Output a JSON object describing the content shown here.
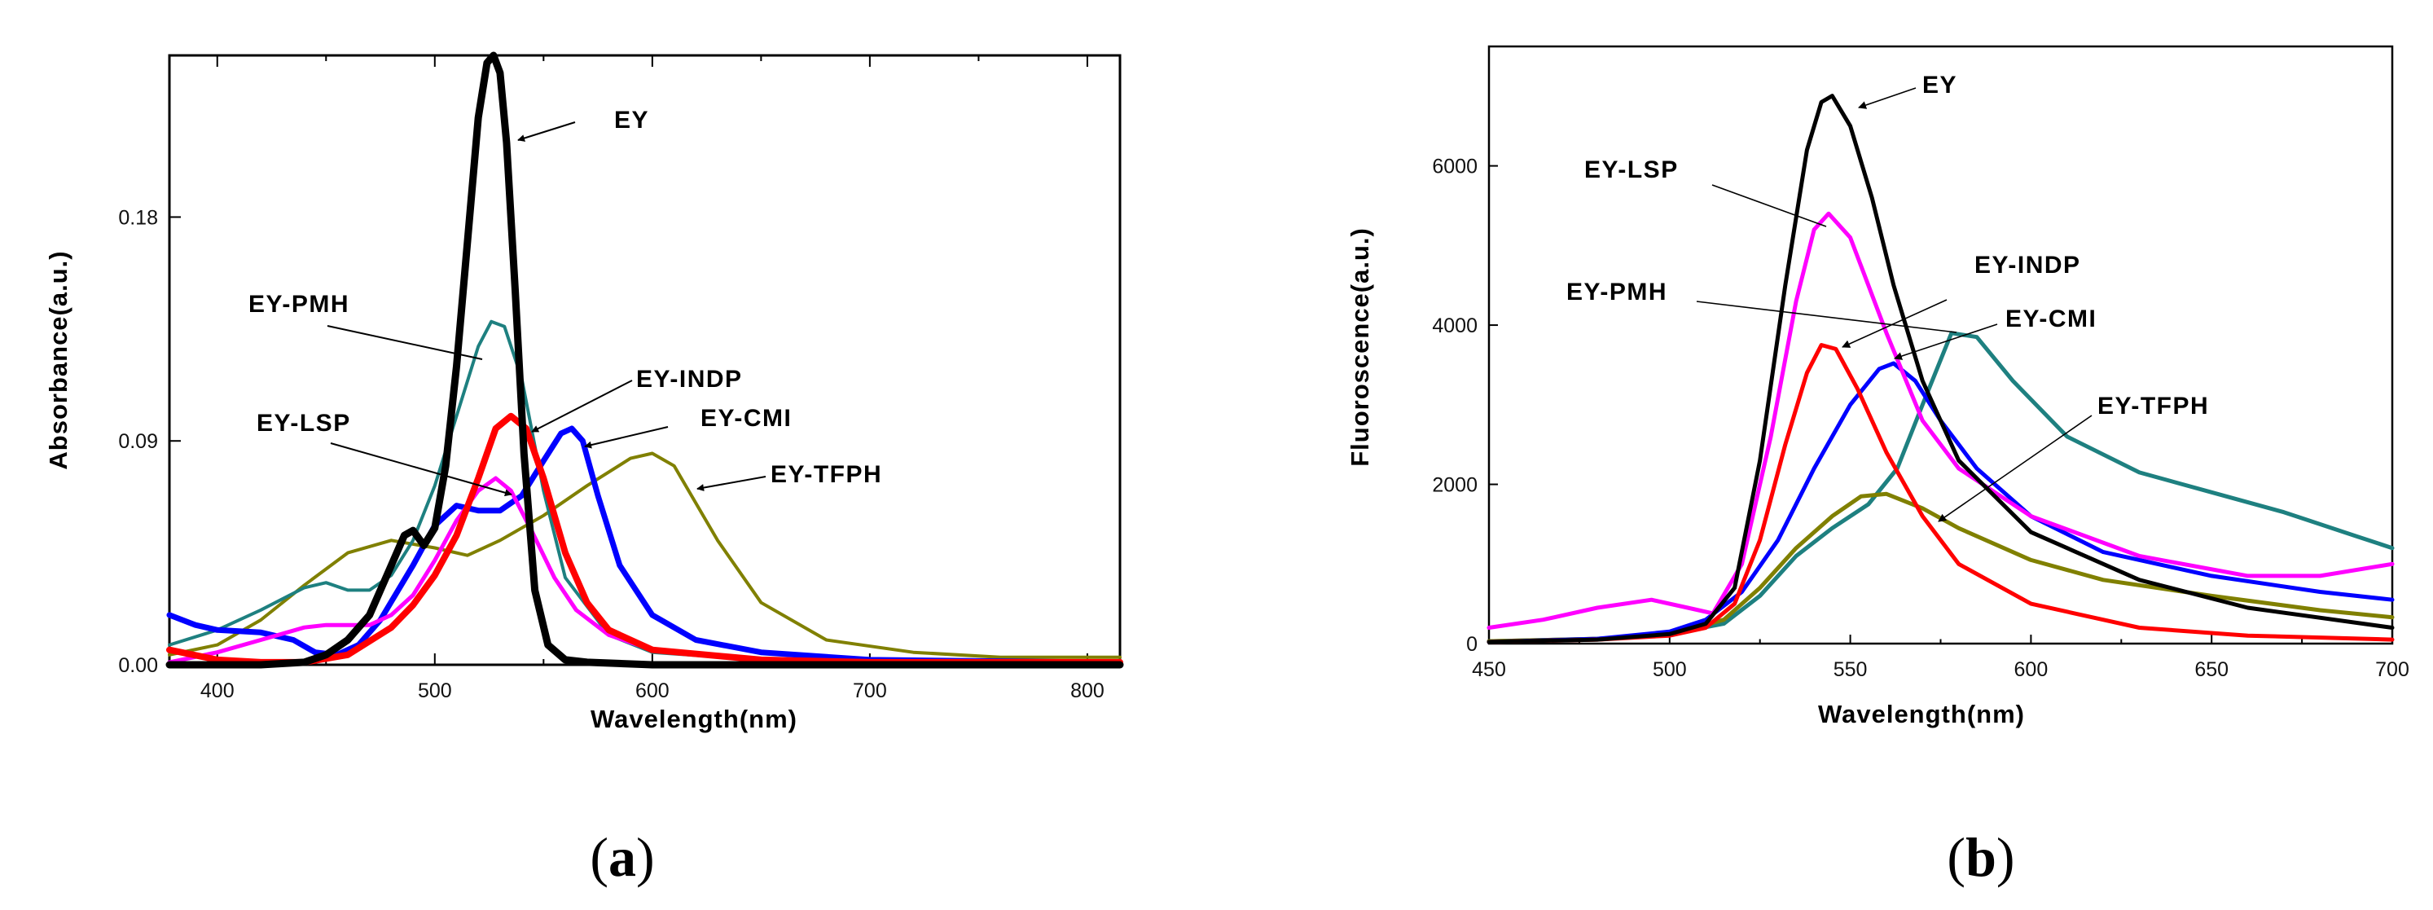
{
  "colors": {
    "EY": "#000000",
    "EY-PMH": "#1e8080",
    "EY-INDP": "#ff0000",
    "EY-CMI": "#0000ff",
    "EY-LSP": "#ff00ff",
    "EY-TFPH": "#808000"
  },
  "panel_labels": {
    "a": "a",
    "b": "b"
  },
  "chart_data": [
    {
      "id": "a",
      "type": "line",
      "title": "",
      "xlabel": "Wavelength(nm)",
      "ylabel": "Absorbance(a.u.)",
      "xlim": [
        378,
        815
      ],
      "ylim": [
        0,
        0.245
      ],
      "xticks": [
        400,
        500,
        600,
        700,
        800
      ],
      "xtick_labels": [
        "400",
        "500",
        "600",
        "700",
        "800"
      ],
      "yticks": [
        0,
        0.09,
        0.18
      ],
      "ytick_labels": [
        "0.00",
        "0.09",
        "0.18"
      ],
      "series": [
        {
          "name": "EY-TFPH",
          "x": [
            378,
            400,
            420,
            440,
            460,
            480,
            500,
            515,
            530,
            550,
            570,
            590,
            600,
            610,
            630,
            650,
            680,
            720,
            760,
            800,
            815
          ],
          "y": [
            0.004,
            0.008,
            0.018,
            0.032,
            0.045,
            0.05,
            0.047,
            0.044,
            0.05,
            0.06,
            0.072,
            0.083,
            0.085,
            0.08,
            0.05,
            0.025,
            0.01,
            0.005,
            0.003,
            0.003,
            0.003
          ]
        },
        {
          "name": "EY-PMH",
          "x": [
            378,
            400,
            420,
            440,
            450,
            460,
            470,
            480,
            490,
            500,
            510,
            520,
            526,
            532,
            540,
            550,
            560,
            580,
            600,
            650,
            700,
            800,
            815
          ],
          "y": [
            0.008,
            0.014,
            0.022,
            0.031,
            0.033,
            0.03,
            0.03,
            0.036,
            0.05,
            0.072,
            0.1,
            0.128,
            0.138,
            0.136,
            0.115,
            0.07,
            0.035,
            0.012,
            0.005,
            0.002,
            0.001,
            0.001,
            0.001
          ]
        },
        {
          "name": "EY-CMI",
          "x": [
            378,
            390,
            400,
            420,
            435,
            445,
            455,
            465,
            475,
            490,
            500,
            510,
            520,
            530,
            540,
            550,
            558,
            563,
            568,
            575,
            585,
            600,
            620,
            650,
            700,
            800,
            815
          ],
          "y": [
            0.02,
            0.016,
            0.014,
            0.013,
            0.01,
            0.005,
            0.004,
            0.008,
            0.018,
            0.04,
            0.056,
            0.064,
            0.062,
            0.062,
            0.068,
            0.082,
            0.093,
            0.095,
            0.09,
            0.068,
            0.04,
            0.02,
            0.01,
            0.005,
            0.002,
            0.001,
            0.001
          ]
        },
        {
          "name": "EY-LSP",
          "x": [
            378,
            400,
            420,
            440,
            450,
            460,
            470,
            480,
            490,
            500,
            510,
            520,
            528,
            535,
            545,
            555,
            565,
            580,
            600,
            650,
            700,
            800,
            815
          ],
          "y": [
            0.001,
            0.005,
            0.01,
            0.015,
            0.016,
            0.016,
            0.016,
            0.02,
            0.028,
            0.042,
            0.058,
            0.07,
            0.075,
            0.07,
            0.053,
            0.035,
            0.022,
            0.012,
            0.006,
            0.002,
            0.001,
            0.001,
            0.001
          ]
        },
        {
          "name": "EY-INDP",
          "x": [
            378,
            400,
            420,
            440,
            460,
            480,
            490,
            500,
            510,
            520,
            528,
            535,
            542,
            550,
            560,
            570,
            580,
            600,
            650,
            700,
            800,
            815
          ],
          "y": [
            0.006,
            0.002,
            0.001,
            0.001,
            0.004,
            0.015,
            0.024,
            0.036,
            0.052,
            0.075,
            0.095,
            0.1,
            0.095,
            0.075,
            0.045,
            0.025,
            0.014,
            0.006,
            0.002,
            0.001,
            0.001,
            0.001
          ]
        },
        {
          "name": "EY",
          "x": [
            378,
            420,
            440,
            450,
            460,
            470,
            480,
            486,
            490,
            495,
            500,
            505,
            510,
            515,
            520,
            524,
            527,
            530,
            533,
            537,
            541,
            546,
            552,
            560,
            570,
            600,
            700,
            815
          ],
          "y": [
            0.0,
            0.0,
            0.001,
            0.004,
            0.01,
            0.02,
            0.04,
            0.052,
            0.054,
            0.048,
            0.055,
            0.08,
            0.12,
            0.17,
            0.22,
            0.242,
            0.245,
            0.238,
            0.21,
            0.15,
            0.085,
            0.03,
            0.008,
            0.002,
            0.001,
            0.0,
            0.0,
            0.0
          ]
        }
      ],
      "labels": [
        "EY",
        "EY-PMH",
        "EY-INDP",
        "EY-CMI",
        "EY-LSP",
        "EY-TFPH"
      ]
    },
    {
      "id": "b",
      "type": "line",
      "title": "",
      "xlabel": "Wavelength(nm)",
      "ylabel": "Fluoroscence(a.u.)",
      "xlim": [
        450,
        700
      ],
      "ylim": [
        0,
        7500
      ],
      "xticks": [
        450,
        500,
        550,
        600,
        650,
        700
      ],
      "xtick_labels": [
        "450",
        "500",
        "550",
        "600",
        "650",
        "700"
      ],
      "yticks": [
        0,
        2000,
        4000,
        6000
      ],
      "ytick_labels": [
        "0",
        "2000",
        "4000",
        "6000"
      ],
      "series": [
        {
          "name": "EY-PMH",
          "x": [
            450,
            480,
            500,
            515,
            525,
            535,
            545,
            555,
            563,
            570,
            578,
            585,
            595,
            610,
            630,
            650,
            670,
            690,
            700
          ],
          "y": [
            30,
            60,
            120,
            250,
            600,
            1100,
            1450,
            1750,
            2200,
            3000,
            3900,
            3850,
            3300,
            2600,
            2150,
            1900,
            1650,
            1350,
            1200
          ]
        },
        {
          "name": "EY-TFPH",
          "x": [
            450,
            480,
            500,
            515,
            525,
            535,
            545,
            553,
            560,
            570,
            580,
            600,
            620,
            650,
            680,
            700
          ],
          "y": [
            30,
            60,
            110,
            300,
            700,
            1200,
            1600,
            1850,
            1880,
            1700,
            1450,
            1050,
            800,
            600,
            420,
            330
          ]
        },
        {
          "name": "EY-CMI",
          "x": [
            450,
            480,
            500,
            510,
            520,
            530,
            540,
            550,
            558,
            562,
            568,
            575,
            585,
            600,
            620,
            650,
            680,
            700
          ],
          "y": [
            20,
            60,
            150,
            300,
            650,
            1300,
            2200,
            3000,
            3450,
            3520,
            3300,
            2800,
            2200,
            1600,
            1150,
            850,
            650,
            550
          ]
        },
        {
          "name": "EY-INDP",
          "x": [
            450,
            480,
            500,
            510,
            518,
            525,
            532,
            538,
            542,
            546,
            552,
            560,
            570,
            580,
            600,
            630,
            660,
            700
          ],
          "y": [
            20,
            50,
            100,
            200,
            500,
            1300,
            2500,
            3400,
            3750,
            3700,
            3200,
            2400,
            1600,
            1000,
            500,
            200,
            100,
            50
          ]
        },
        {
          "name": "EY-LSP",
          "x": [
            450,
            465,
            480,
            495,
            505,
            512,
            520,
            528,
            535,
            540,
            544,
            550,
            560,
            570,
            580,
            600,
            630,
            660,
            680,
            700
          ],
          "y": [
            200,
            300,
            450,
            550,
            450,
            380,
            1000,
            2600,
            4300,
            5200,
            5400,
            5100,
            3900,
            2800,
            2200,
            1600,
            1100,
            850,
            850,
            1000
          ]
        },
        {
          "name": "EY",
          "x": [
            450,
            480,
            500,
            510,
            518,
            525,
            532,
            538,
            542,
            545,
            550,
            556,
            562,
            570,
            580,
            600,
            630,
            660,
            700
          ],
          "y": [
            20,
            50,
            120,
            250,
            700,
            2300,
            4500,
            6200,
            6800,
            6880,
            6500,
            5600,
            4500,
            3300,
            2300,
            1400,
            800,
            450,
            200
          ]
        }
      ],
      "labels": [
        "EY",
        "EY-LSP",
        "EY-INDP",
        "EY-PMH",
        "EY-CMI",
        "EY-TFPH"
      ]
    }
  ]
}
